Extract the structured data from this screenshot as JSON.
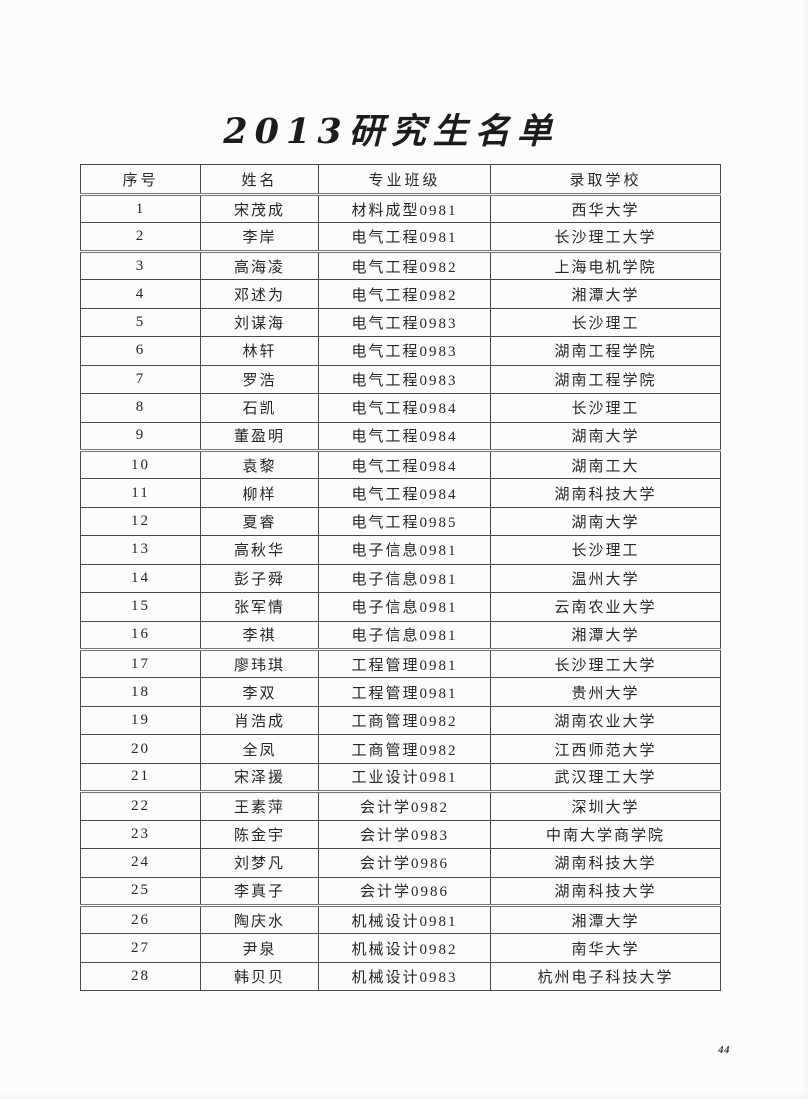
{
  "page": {
    "title": "2013研究生名单",
    "page_number": "44"
  },
  "table": {
    "headers": [
      "序号",
      "姓名",
      "专业班级",
      "录取学校"
    ],
    "rows": [
      [
        "1",
        "宋茂成",
        "材料成型0981",
        "西华大学"
      ],
      [
        "2",
        "李岸",
        "电气工程0981",
        "长沙理工大学"
      ],
      [
        "3",
        "高海凌",
        "电气工程0982",
        "上海电机学院"
      ],
      [
        "4",
        "邓述为",
        "电气工程0982",
        "湘潭大学"
      ],
      [
        "5",
        "刘谋海",
        "电气工程0983",
        "长沙理工"
      ],
      [
        "6",
        "林轩",
        "电气工程0983",
        "湖南工程学院"
      ],
      [
        "7",
        "罗浩",
        "电气工程0983",
        "湖南工程学院"
      ],
      [
        "8",
        "石凯",
        "电气工程0984",
        "长沙理工"
      ],
      [
        "9",
        "董盈明",
        "电气工程0984",
        "湖南大学"
      ],
      [
        "10",
        "袁黎",
        "电气工程0984",
        "湖南工大"
      ],
      [
        "11",
        "柳样",
        "电气工程0984",
        "湖南科技大学"
      ],
      [
        "12",
        "夏睿",
        "电气工程0985",
        "湖南大学"
      ],
      [
        "13",
        "高秋华",
        "电子信息0981",
        "长沙理工"
      ],
      [
        "14",
        "彭子舜",
        "电子信息0981",
        "温州大学"
      ],
      [
        "15",
        "张军情",
        "电子信息0981",
        "云南农业大学"
      ],
      [
        "16",
        "李祺",
        "电子信息0981",
        "湘潭大学"
      ],
      [
        "17",
        "廖玮琪",
        "工程管理0981",
        "长沙理工大学"
      ],
      [
        "18",
        "李双",
        "工程管理0981",
        "贵州大学"
      ],
      [
        "19",
        "肖浩成",
        "工商管理0982",
        "湖南农业大学"
      ],
      [
        "20",
        "全凤",
        "工商管理0982",
        "江西师范大学"
      ],
      [
        "21",
        "宋泽援",
        "工业设计0981",
        "武汉理工大学"
      ],
      [
        "22",
        "王素萍",
        "会计学0982",
        "深圳大学"
      ],
      [
        "23",
        "陈金宇",
        "会计学0983",
        "中南大学商学院"
      ],
      [
        "24",
        "刘梦凡",
        "会计学0986",
        "湖南科技大学"
      ],
      [
        "25",
        "李真子",
        "会计学0986",
        "湖南科技大学"
      ],
      [
        "26",
        "陶庆水",
        "机械设计0981",
        "湘潭大学"
      ],
      [
        "27",
        "尹泉",
        "机械设计0982",
        "南华大学"
      ],
      [
        "28",
        "韩贝贝",
        "机械设计0983",
        "杭州电子科技大学"
      ]
    ]
  },
  "colors": {
    "text": "#262626",
    "border": "#4a4a4a",
    "page_background": "#fcfcfc"
  }
}
